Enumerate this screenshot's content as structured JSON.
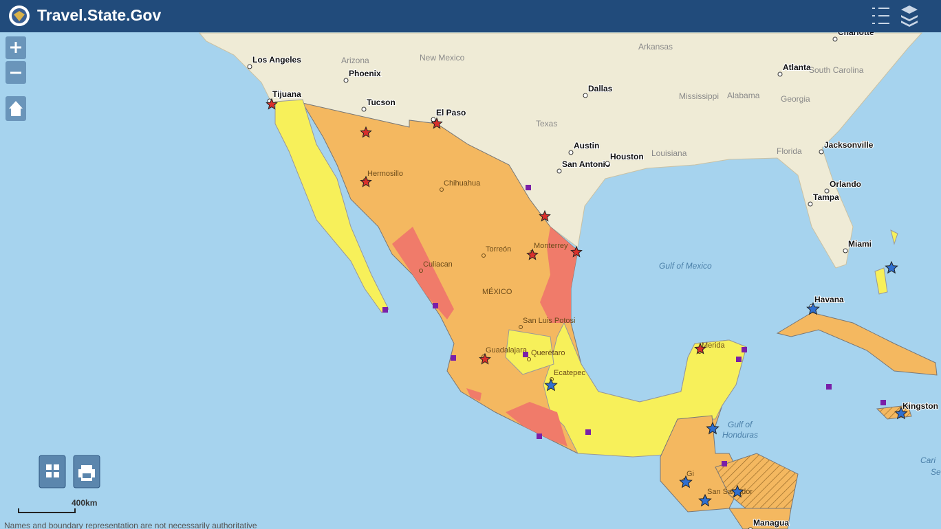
{
  "header": {
    "title": "Travel.State.Gov"
  },
  "map": {
    "cities": [
      "Los Angeles",
      "Phoenix",
      "Tucson",
      "Tijuana",
      "El Paso",
      "Dallas",
      "Austin",
      "San Antonio",
      "Houston",
      "Atlanta",
      "Charlotte",
      "Jacksonville",
      "Orlando",
      "Tampa",
      "Miami",
      "Havana",
      "Kingston",
      "Managua"
    ],
    "us_states": [
      "Arizona",
      "New Mexico",
      "Texas",
      "Arkansas",
      "Mississippi",
      "Alabama",
      "Georgia",
      "Louisiana",
      "Florida",
      "South Carolina"
    ],
    "mexico_places": [
      "Hermosillo",
      "Chihuahua",
      "Torreón",
      "Culiacan",
      "Monterrey",
      "MÉXICO",
      "San Luis Potosi",
      "Guadalajara",
      "Querétaro",
      "Ecatepec",
      "Merida",
      "Gi",
      "San Salvador"
    ],
    "water": [
      "Gulf of Mexico",
      "Gulf of",
      "Honduras",
      "Cari",
      "Se"
    ]
  },
  "scale": "400km",
  "footer": "Names and boundary representation are not necessarily authoritative"
}
